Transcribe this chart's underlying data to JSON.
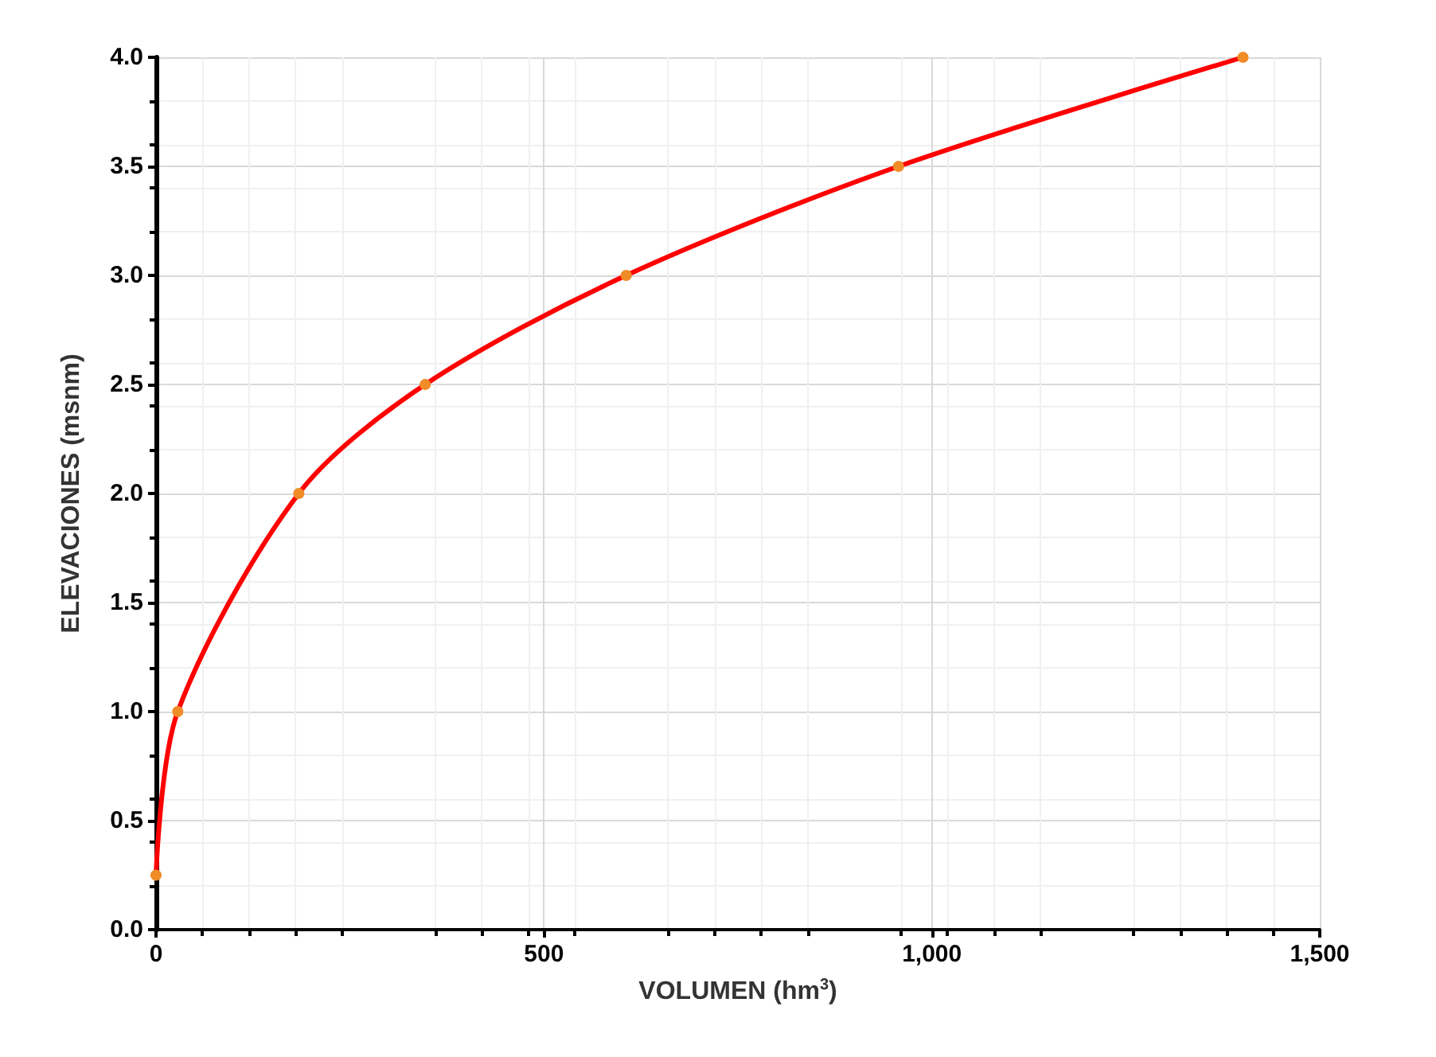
{
  "chart_data": {
    "type": "line",
    "xlabel": "VOLUMEN (hm$^{3}$)",
    "ylabel": "ELEVACIONES (msnm)",
    "x": [
      0,
      28,
      184,
      347,
      606,
      957,
      1401
    ],
    "series": [
      {
        "color": "#ff0000",
        "values": [
          0.25,
          1.0,
          2.0,
          2.5,
          3.0,
          3.5,
          4.0
        ]
      }
    ],
    "xlim": [
      0,
      1500
    ],
    "xticks": [
      {
        "value": 0,
        "label": "0"
      },
      {
        "value": 500,
        "label": "500"
      },
      {
        "value": 1000,
        "label": "1,000"
      },
      {
        "value": 1500,
        "label": "1,500"
      }
    ],
    "ylim": [
      0,
      4
    ],
    "yticks": [
      {
        "value": 0,
        "label": "0.0"
      },
      {
        "value": 0.5,
        "label": "0.5"
      },
      {
        "value": 1,
        "label": "1.0"
      },
      {
        "value": 1.5,
        "label": "1.5"
      },
      {
        "value": 2,
        "label": "2.0"
      },
      {
        "value": 2.5,
        "label": "2.5"
      },
      {
        "value": 3,
        "label": "3.0"
      },
      {
        "value": 3.5,
        "label": "3.5"
      },
      {
        "value": 4,
        "label": "4.0"
      }
    ],
    "grid": true,
    "marker": "circle",
    "line_style": "solid"
  }
}
